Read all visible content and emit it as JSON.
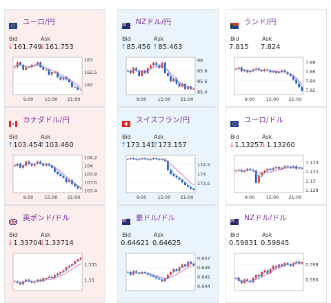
{
  "cards": [
    {
      "title": "ユーロ/円",
      "bid_label": "Bid",
      "ask_label": "Ask",
      "bid": "161.749",
      "ask": "161.753",
      "bid_dir": "down",
      "ask_dir": "down",
      "bg": "#fdeeee",
      "flag": "eu-flag",
      "chart": {
        "yticks": [
          "163",
          "162.5",
          "162"
        ],
        "ylim": [
          161.6,
          163.1
        ],
        "xticks": [
          "9:00",
          "15:00",
          "21:00"
        ],
        "closes": [
          162.7,
          162.9,
          162.8,
          162.6,
          162.7,
          162.7,
          162.8,
          162.8,
          162.9,
          162.7,
          162.6,
          162.6,
          162.4,
          162.5,
          162.5,
          162.3,
          162.2,
          162.3,
          162.2,
          162.1,
          161.9,
          161.9,
          161.8,
          161.8
        ],
        "ma": [
          162.75,
          162.78,
          162.78,
          162.75,
          162.74,
          162.73,
          162.73,
          162.74,
          162.76,
          162.75,
          162.71,
          162.68,
          162.62,
          162.58,
          162.54,
          162.47,
          162.4,
          162.36,
          162.3,
          162.24,
          162.14,
          162.06,
          161.98,
          161.9
        ]
      }
    },
    {
      "title": "NZドル/円",
      "bid_label": "Bid",
      "ask_label": "Ask",
      "bid": "85.456",
      "ask": "85.463",
      "bid_dir": "up",
      "ask_dir": "up",
      "bg": "#e9f4fc",
      "flag": "nz-flag",
      "chart": {
        "yticks": [
          "86",
          "85.8",
          "85.6",
          "85.4"
        ],
        "ylim": [
          85.35,
          86.05
        ],
        "xticks": [
          "9:00",
          "15:00",
          "21:00"
        ],
        "closes": [
          85.8,
          85.75,
          85.85,
          85.8,
          85.7,
          85.8,
          85.75,
          85.85,
          85.9,
          85.95,
          85.9,
          85.85,
          85.95,
          85.75,
          85.7,
          85.6,
          85.65,
          85.55,
          85.5,
          85.55,
          85.45,
          85.5,
          85.45,
          85.46
        ],
        "ma": [
          85.78,
          85.78,
          85.8,
          85.8,
          85.78,
          85.78,
          85.78,
          85.8,
          85.83,
          85.86,
          85.87,
          85.87,
          85.89,
          85.85,
          85.81,
          85.74,
          85.7,
          85.64,
          85.58,
          85.56,
          85.51,
          85.5,
          85.48,
          85.47
        ]
      }
    },
    {
      "title": "ランド/円",
      "bid_label": "Bid",
      "ask_label": "Ask",
      "bid": "7.815",
      "ask": "7.824",
      "bid_dir": "none",
      "ask_dir": "none",
      "bg": "#ffffff",
      "flag": "za-flag",
      "chart": {
        "yticks": [
          "7.88",
          "7.86",
          "7.84",
          "7.82"
        ],
        "ylim": [
          7.81,
          7.89
        ],
        "xticks": [
          "9:00",
          "15:00",
          "21:00"
        ],
        "closes": [
          7.865,
          7.868,
          7.86,
          7.862,
          7.858,
          7.86,
          7.864,
          7.866,
          7.862,
          7.86,
          7.864,
          7.862,
          7.858,
          7.86,
          7.856,
          7.858,
          7.862,
          7.858,
          7.854,
          7.85,
          7.842,
          7.834,
          7.826,
          7.818
        ],
        "ma": [
          7.866,
          7.866,
          7.864,
          7.863,
          7.862,
          7.861,
          7.862,
          7.863,
          7.863,
          7.862,
          7.862,
          7.862,
          7.861,
          7.861,
          7.86,
          7.859,
          7.859,
          7.859,
          7.857,
          7.855,
          7.851,
          7.846,
          7.839,
          7.831
        ]
      }
    },
    {
      "title": "カナダドル/円",
      "bid_label": "Bid",
      "ask_label": "Ask",
      "bid": "103.454",
      "ask": "103.460",
      "bid_dir": "up",
      "ask_dir": "up",
      "bg": "#fdeeee",
      "flag": "ca-flag",
      "chart": {
        "yticks": [
          "104.2",
          "104",
          "103.8",
          "103.6",
          "103.4"
        ],
        "ylim": [
          103.35,
          104.25
        ],
        "xticks": [
          "9:00",
          "15:00",
          "21:00"
        ],
        "closes": [
          104.0,
          104.05,
          103.95,
          104.0,
          104.1,
          104.05,
          104.0,
          104.05,
          104.1,
          104.05,
          104.0,
          104.05,
          104.0,
          103.95,
          103.85,
          103.8,
          103.75,
          103.7,
          103.6,
          103.65,
          103.55,
          103.5,
          103.45,
          103.45
        ],
        "ma": [
          104.02,
          104.03,
          104.01,
          104.01,
          104.03,
          104.04,
          104.03,
          104.04,
          104.05,
          104.05,
          104.04,
          104.04,
          104.03,
          104.01,
          103.97,
          103.92,
          103.86,
          103.8,
          103.74,
          103.69,
          103.63,
          103.58,
          103.52,
          103.48
        ]
      }
    },
    {
      "title": "スイスフラン/円",
      "bid_label": "Bid",
      "ask_label": "Ask",
      "bid": "173.141",
      "ask": "173.157",
      "bid_dir": "up",
      "ask_dir": "up",
      "bg": "#e9f4fc",
      "flag": "ch-flag",
      "chart": {
        "yticks": [
          "174.5",
          "174",
          "173.5"
        ],
        "ylim": [
          173.0,
          175.0
        ],
        "xticks": [
          "9:00",
          "15:00",
          "21:00"
        ],
        "closes": [
          174.8,
          174.85,
          174.8,
          174.75,
          174.8,
          174.85,
          174.8,
          174.75,
          174.8,
          174.85,
          174.8,
          174.75,
          174.8,
          174.7,
          174.2,
          174.0,
          173.9,
          173.8,
          173.7,
          173.55,
          173.4,
          173.3,
          173.2,
          173.15
        ],
        "ma": [
          174.8,
          174.81,
          174.81,
          174.8,
          174.8,
          174.81,
          174.81,
          174.8,
          174.8,
          174.81,
          174.81,
          174.8,
          174.8,
          174.78,
          174.66,
          174.52,
          174.38,
          174.24,
          174.1,
          173.95,
          173.8,
          173.66,
          173.52,
          173.4
        ]
      }
    },
    {
      "title": "ユーロ/ドル",
      "bid_label": "Bid",
      "ask_label": "Ask",
      "bid": "1.13257",
      "ask": "1.13260",
      "bid_dir": "down",
      "ask_dir": "down",
      "bg": "#ffffff",
      "flag": "eu-flag",
      "chart": {
        "yticks": [
          "1.134",
          "1.132",
          "1.13",
          "1.128"
        ],
        "ylim": [
          1.1275,
          1.1355
        ],
        "xticks": [
          "9:00",
          "15:00",
          "21:00"
        ],
        "closes": [
          1.1322,
          1.1324,
          1.132,
          1.1322,
          1.1326,
          1.1324,
          1.1322,
          1.1296,
          1.1312,
          1.1318,
          1.1322,
          1.1326,
          1.1324,
          1.1328,
          1.133,
          1.1326,
          1.1328,
          1.1332,
          1.133,
          1.1328,
          1.1332,
          1.1326,
          1.1328,
          1.1326
        ],
        "ma": [
          1.1322,
          1.1323,
          1.1322,
          1.1322,
          1.1323,
          1.1324,
          1.1324,
          1.1318,
          1.1317,
          1.1316,
          1.1317,
          1.1318,
          1.1319,
          1.1321,
          1.1323,
          1.1324,
          1.1325,
          1.1327,
          1.1328,
          1.1328,
          1.1329,
          1.1329,
          1.1329,
          1.1328
        ]
      }
    },
    {
      "title": "英ポンド/ドル",
      "bid_label": "Bid",
      "ask_label": "Ask",
      "bid": "1.33704",
      "ask": "1.33714",
      "bid_dir": "down",
      "ask_dir": "down",
      "bg": "#fdeeee",
      "flag": "gb-flag",
      "chart": {
        "yticks": [
          "1.335",
          "1.33"
        ],
        "ylim": [
          1.3265,
          1.3385
        ],
        "xticks": [],
        "closes": [
          1.3295,
          1.329,
          1.3285,
          1.3295,
          1.33,
          1.3295,
          1.329,
          1.3295,
          1.33,
          1.3295,
          1.3305,
          1.3305,
          1.331,
          1.3305,
          1.3315,
          1.332,
          1.3325,
          1.333,
          1.334,
          1.3345,
          1.335,
          1.336,
          1.3365,
          1.337
        ],
        "ma": [
          1.3295,
          1.3294,
          1.3292,
          1.3293,
          1.3295,
          1.3295,
          1.3294,
          1.3294,
          1.3295,
          1.3295,
          1.3297,
          1.3299,
          1.3301,
          1.3302,
          1.3305,
          1.3308,
          1.3312,
          1.3316,
          1.3322,
          1.3328,
          1.3334,
          1.334,
          1.3346,
          1.3352
        ]
      }
    },
    {
      "title": "豪ドル/ドル",
      "bid_label": "Bid",
      "ask_label": "Ask",
      "bid": "0.64621",
      "ask": "0.64625",
      "bid_dir": "none",
      "ask_dir": "none",
      "bg": "#e9f4fc",
      "flag": "au-flag",
      "chart": {
        "yticks": [
          "0.647",
          "0.646",
          "0.645",
          "0.644"
        ],
        "ylim": [
          0.6435,
          0.6475
        ],
        "xticks": [],
        "closes": [
          0.6455,
          0.6452,
          0.6456,
          0.6454,
          0.6453,
          0.6455,
          0.6454,
          0.6452,
          0.6451,
          0.645,
          0.6448,
          0.6447,
          0.6445,
          0.6448,
          0.6452,
          0.6455,
          0.6458,
          0.6456,
          0.646,
          0.6463,
          0.6461,
          0.6466,
          0.6464,
          0.6462
        ],
        "ma": [
          0.6455,
          0.6454,
          0.6454,
          0.6454,
          0.6454,
          0.6454,
          0.6454,
          0.6453,
          0.6453,
          0.6452,
          0.6451,
          0.645,
          0.6449,
          0.6448,
          0.6448,
          0.6449,
          0.6451,
          0.6452,
          0.6454,
          0.6456,
          0.6458,
          0.646,
          0.6461,
          0.6462
        ]
      }
    },
    {
      "title": "NZドル/ドル",
      "bid_label": "Bid",
      "ask_label": "Ask",
      "bid": "0.59831",
      "ask": "0.59845",
      "bid_dir": "none",
      "ask_dir": "none",
      "bg": "#ffffff",
      "flag": "nz-flag",
      "chart": {
        "yticks": [
          "0.598",
          "0.596"
        ],
        "ylim": [
          0.5945,
          0.5995
        ],
        "xticks": [],
        "closes": [
          0.5962,
          0.5958,
          0.5955,
          0.596,
          0.5958,
          0.5956,
          0.5962,
          0.5966,
          0.5964,
          0.597,
          0.5972,
          0.5968,
          0.5974,
          0.5978,
          0.5976,
          0.598,
          0.5978,
          0.5982,
          0.598,
          0.5978,
          0.5982,
          0.5984,
          0.5981,
          0.5983
        ],
        "ma": [
          0.596,
          0.5959,
          0.5958,
          0.5958,
          0.5958,
          0.5957,
          0.5958,
          0.596,
          0.5961,
          0.5963,
          0.5966,
          0.5967,
          0.5969,
          0.5972,
          0.5974,
          0.5976,
          0.5977,
          0.5979,
          0.598,
          0.598,
          0.5981,
          0.5982,
          0.5982,
          0.5982
        ]
      }
    }
  ]
}
